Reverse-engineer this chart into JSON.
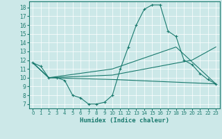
{
  "xlabel": "Humidex (Indice chaleur)",
  "bg_color": "#cce8e8",
  "grid_color": "#ffffff",
  "line_color": "#1a7a6e",
  "xlim": [
    -0.5,
    23.5
  ],
  "ylim": [
    6.5,
    18.7
  ],
  "yticks": [
    7,
    8,
    9,
    10,
    11,
    12,
    13,
    14,
    15,
    16,
    17,
    18
  ],
  "xticks": [
    0,
    1,
    2,
    3,
    4,
    5,
    6,
    7,
    8,
    9,
    10,
    11,
    12,
    13,
    14,
    15,
    16,
    17,
    18,
    19,
    20,
    21,
    22,
    23
  ],
  "line1_x": [
    0,
    1,
    2,
    3,
    4,
    5,
    6,
    7,
    8,
    9,
    10,
    11,
    12,
    13,
    14,
    15,
    16,
    17,
    18,
    19,
    20,
    21,
    22,
    23
  ],
  "line1_y": [
    11.7,
    11.3,
    10.0,
    10.0,
    9.7,
    8.0,
    7.7,
    7.0,
    7.0,
    7.2,
    8.0,
    11.0,
    13.5,
    16.0,
    17.8,
    18.3,
    18.3,
    15.3,
    14.7,
    12.0,
    11.5,
    10.5,
    9.8,
    9.3
  ],
  "line2_x": [
    0,
    2,
    10,
    23
  ],
  "line2_y": [
    11.7,
    10.0,
    9.8,
    9.3
  ],
  "line3_x": [
    0,
    2,
    10,
    20,
    23
  ],
  "line3_y": [
    11.7,
    10.0,
    10.3,
    12.0,
    13.5
  ],
  "line4_x": [
    0,
    2,
    10,
    18,
    23
  ],
  "line4_y": [
    11.7,
    10.0,
    11.0,
    13.5,
    9.3
  ]
}
